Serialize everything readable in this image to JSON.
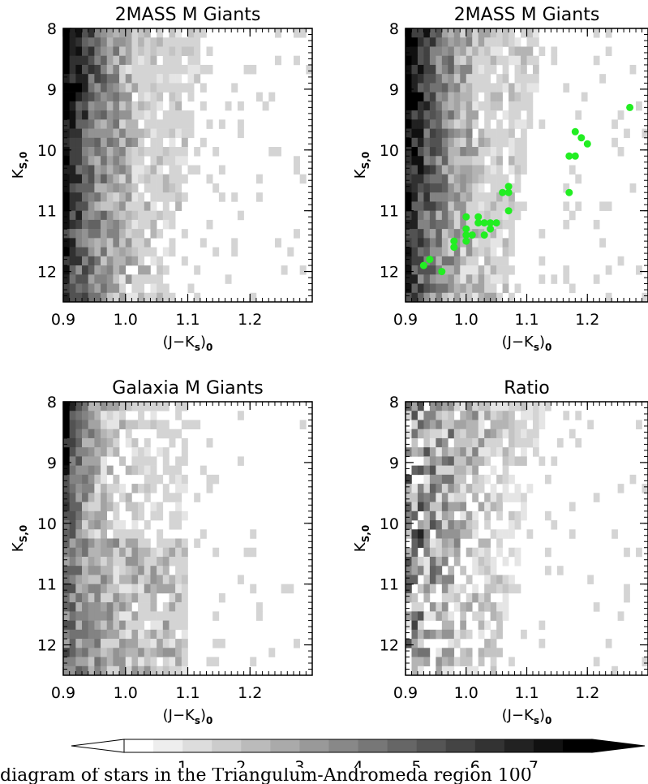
{
  "chart_data": [
    {
      "type": "heatmap",
      "title": "2MASS M Giants",
      "xlabel": "(J−K_s)_0",
      "ylabel": "K_S,0",
      "xlim": [
        0.9,
        1.3
      ],
      "ylim": [
        8.0,
        12.5
      ],
      "x_ticks": [
        "0.9",
        "1.0",
        "1.1",
        "1.2"
      ],
      "y_ticks": [
        "8",
        "9",
        "10",
        "11",
        "12"
      ],
      "density": "dense-left",
      "overlay_points": []
    },
    {
      "type": "heatmap",
      "title": "2MASS M Giants",
      "xlabel": "(J−K_s)_0",
      "ylabel": "K_S,0",
      "xlim": [
        0.9,
        1.3
      ],
      "ylim": [
        8.0,
        12.5
      ],
      "x_ticks": [
        "0.9",
        "1.0",
        "1.1",
        "1.2"
      ],
      "y_ticks": [
        "8",
        "9",
        "10",
        "11",
        "12"
      ],
      "density": "dense-left",
      "overlay_color": "#22ee22",
      "overlay_points": [
        [
          1.27,
          9.3
        ],
        [
          1.18,
          9.7
        ],
        [
          1.19,
          9.8
        ],
        [
          1.2,
          9.9
        ],
        [
          1.17,
          10.1
        ],
        [
          1.18,
          10.1
        ],
        [
          1.17,
          10.7
        ],
        [
          1.07,
          10.6
        ],
        [
          1.06,
          10.7
        ],
        [
          1.07,
          10.7
        ],
        [
          1.07,
          11.0
        ],
        [
          1.0,
          11.1
        ],
        [
          1.02,
          11.1
        ],
        [
          1.02,
          11.2
        ],
        [
          1.03,
          11.2
        ],
        [
          1.04,
          11.2
        ],
        [
          1.05,
          11.2
        ],
        [
          1.0,
          11.3
        ],
        [
          1.04,
          11.3
        ],
        [
          1.0,
          11.4
        ],
        [
          1.01,
          11.4
        ],
        [
          1.03,
          11.4
        ],
        [
          1.0,
          11.5
        ],
        [
          0.98,
          11.5
        ],
        [
          0.98,
          11.6
        ],
        [
          0.94,
          11.8
        ],
        [
          0.93,
          11.9
        ],
        [
          0.96,
          12.0
        ]
      ]
    },
    {
      "type": "heatmap",
      "title": "Galaxia M Giants",
      "xlabel": "(J−K_s)_0",
      "ylabel": "K_S,0",
      "xlim": [
        0.9,
        1.3
      ],
      "ylim": [
        8.0,
        12.5
      ],
      "x_ticks": [
        "0.9",
        "1.0",
        "1.1",
        "1.2"
      ],
      "y_ticks": [
        "8",
        "9",
        "10",
        "11",
        "12"
      ],
      "density": "medium-left",
      "overlay_points": []
    },
    {
      "type": "heatmap",
      "title": "Ratio",
      "xlabel": "(J−K_s)_0",
      "ylabel": "K_S,0",
      "xlim": [
        0.9,
        1.3
      ],
      "ylim": [
        8.0,
        12.5
      ],
      "x_ticks": [
        "0.9",
        "1.0",
        "1.1",
        "1.2"
      ],
      "y_ticks": [
        "8",
        "9",
        "10",
        "11",
        "12"
      ],
      "density": "ratio",
      "overlay_points": []
    }
  ],
  "colorbar": {
    "min": 0,
    "max": 8,
    "levels": 16,
    "tick_labels": [
      "1",
      "2",
      "3",
      "4",
      "5",
      "6",
      "7"
    ]
  },
  "caption_fragment": "diagram of stars in the Triangulum-Andromeda region 100"
}
